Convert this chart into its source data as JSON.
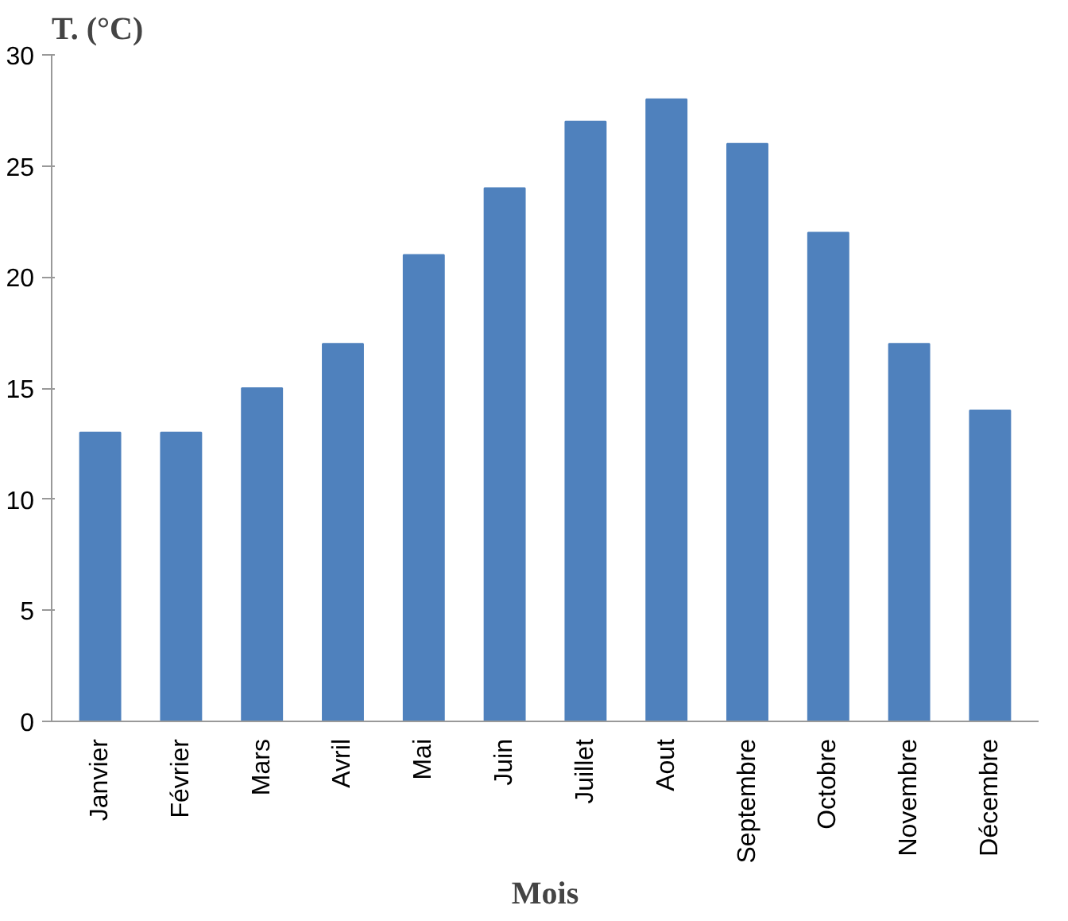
{
  "chart_data": {
    "type": "bar",
    "ylabel": "T. (°C)",
    "xlabel": "Mois",
    "categories": [
      "Janvier",
      "Février",
      "Mars",
      "Avril",
      "Mai",
      "Juin",
      "Juillet",
      "Aout",
      "Septembre",
      "Octobre",
      "Novembre",
      "Décembre"
    ],
    "values": [
      13,
      13,
      15,
      17,
      21,
      24,
      27,
      28,
      26,
      22,
      17,
      14
    ],
    "color": "#4f81bd",
    "ylim": [
      0,
      30
    ],
    "yticks": [
      0,
      5,
      10,
      15,
      20,
      25,
      30
    ]
  }
}
